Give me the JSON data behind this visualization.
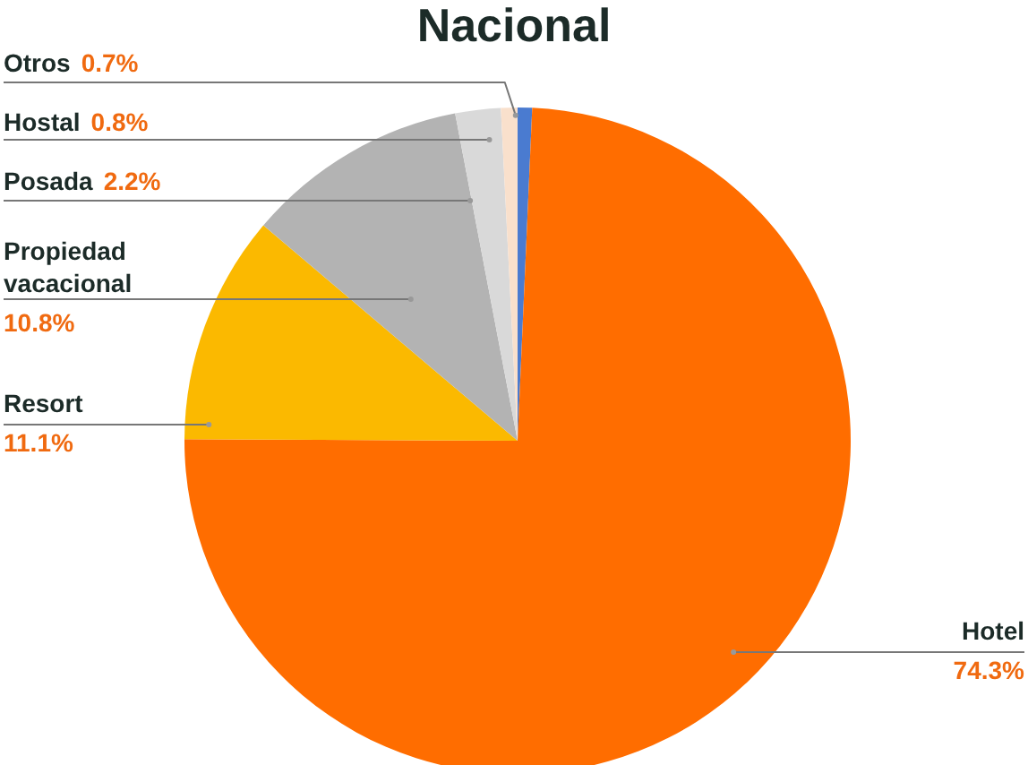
{
  "chart_data": {
    "type": "pie",
    "title": "Nacional",
    "categories": [
      "Otros",
      "Hotel",
      "Resort",
      "Propiedad vacacional",
      "Posada",
      "Hostal"
    ],
    "values": [
      0.7,
      74.3,
      11.1,
      10.8,
      2.2,
      0.8
    ],
    "value_labels": [
      "0.7%",
      "74.3%",
      "11.1%",
      "10.8%",
      "2.2%",
      "0.8%"
    ],
    "colors": [
      "#4a7bd0",
      "#ff6d00",
      "#fbb900",
      "#b3b3b3",
      "#d9d9d9",
      "#f9e0cc"
    ]
  }
}
